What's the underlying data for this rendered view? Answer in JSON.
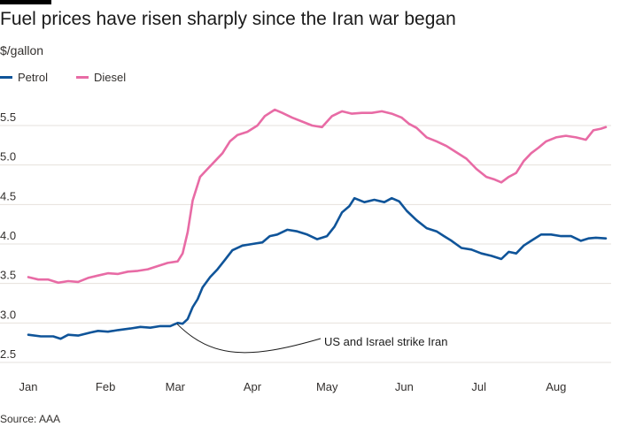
{
  "chart_data": {
    "type": "line",
    "title": "Fuel prices have risen sharply since the Iran war began",
    "ylabel": "$/gallon",
    "source": "Source: AAA",
    "xlim": [
      0,
      232
    ],
    "ylim": [
      2.5,
      5.75
    ],
    "yticks": [
      2.5,
      3.0,
      3.5,
      4.0,
      4.5,
      5.0,
      5.5
    ],
    "months": [
      {
        "label": "Jan",
        "x": 0
      },
      {
        "label": "Feb",
        "x": 31
      },
      {
        "label": "Mar",
        "x": 59
      },
      {
        "label": "Apr",
        "x": 90
      },
      {
        "label": "May",
        "x": 120
      },
      {
        "label": "Jun",
        "x": 151
      },
      {
        "label": "Jul",
        "x": 181
      },
      {
        "label": "Aug",
        "x": 212
      }
    ],
    "grid": true,
    "legend": "top-left",
    "series": [
      {
        "name": "Petrol",
        "color": "#0f5499",
        "points": [
          [
            0,
            2.85
          ],
          [
            5,
            2.83
          ],
          [
            10,
            2.83
          ],
          [
            13,
            2.8
          ],
          [
            16,
            2.85
          ],
          [
            20,
            2.84
          ],
          [
            25,
            2.88
          ],
          [
            28,
            2.9
          ],
          [
            32,
            2.89
          ],
          [
            36,
            2.91
          ],
          [
            41,
            2.93
          ],
          [
            45,
            2.95
          ],
          [
            49,
            2.94
          ],
          [
            53,
            2.96
          ],
          [
            57,
            2.96
          ],
          [
            60,
            3.0
          ],
          [
            62,
            2.99
          ],
          [
            64,
            3.05
          ],
          [
            66,
            3.2
          ],
          [
            68,
            3.3
          ],
          [
            70,
            3.45
          ],
          [
            73,
            3.58
          ],
          [
            76,
            3.68
          ],
          [
            79,
            3.8
          ],
          [
            82,
            3.92
          ],
          [
            86,
            3.98
          ],
          [
            90,
            4.0
          ],
          [
            94,
            4.02
          ],
          [
            97,
            4.1
          ],
          [
            100,
            4.12
          ],
          [
            104,
            4.18
          ],
          [
            108,
            4.16
          ],
          [
            112,
            4.12
          ],
          [
            116,
            4.06
          ],
          [
            120,
            4.1
          ],
          [
            123,
            4.22
          ],
          [
            126,
            4.4
          ],
          [
            129,
            4.48
          ],
          [
            131,
            4.58
          ],
          [
            135,
            4.53
          ],
          [
            139,
            4.56
          ],
          [
            143,
            4.53
          ],
          [
            146,
            4.58
          ],
          [
            149,
            4.54
          ],
          [
            152,
            4.42
          ],
          [
            156,
            4.3
          ],
          [
            160,
            4.2
          ],
          [
            164,
            4.16
          ],
          [
            167,
            4.1
          ],
          [
            170,
            4.04
          ],
          [
            174,
            3.95
          ],
          [
            178,
            3.93
          ],
          [
            182,
            3.88
          ],
          [
            186,
            3.85
          ],
          [
            190,
            3.81
          ],
          [
            193,
            3.9
          ],
          [
            196,
            3.88
          ],
          [
            199,
            3.98
          ],
          [
            202,
            4.04
          ],
          [
            206,
            4.12
          ],
          [
            210,
            4.12
          ],
          [
            214,
            4.1
          ],
          [
            218,
            4.1
          ],
          [
            222,
            4.04
          ],
          [
            225,
            4.07
          ],
          [
            228,
            4.08
          ],
          [
            232,
            4.07
          ]
        ]
      },
      {
        "name": "Diesel",
        "color": "#e86ba5",
        "points": [
          [
            0,
            3.58
          ],
          [
            4,
            3.55
          ],
          [
            8,
            3.55
          ],
          [
            12,
            3.51
          ],
          [
            16,
            3.53
          ],
          [
            20,
            3.52
          ],
          [
            24,
            3.57
          ],
          [
            28,
            3.6
          ],
          [
            32,
            3.63
          ],
          [
            36,
            3.62
          ],
          [
            40,
            3.65
          ],
          [
            44,
            3.66
          ],
          [
            48,
            3.68
          ],
          [
            52,
            3.72
          ],
          [
            56,
            3.76
          ],
          [
            60,
            3.78
          ],
          [
            62,
            3.88
          ],
          [
            64,
            4.15
          ],
          [
            66,
            4.55
          ],
          [
            69,
            4.85
          ],
          [
            72,
            4.95
          ],
          [
            75,
            5.05
          ],
          [
            78,
            5.15
          ],
          [
            81,
            5.3
          ],
          [
            84,
            5.38
          ],
          [
            88,
            5.42
          ],
          [
            92,
            5.5
          ],
          [
            95,
            5.62
          ],
          [
            99,
            5.7
          ],
          [
            102,
            5.66
          ],
          [
            106,
            5.6
          ],
          [
            110,
            5.55
          ],
          [
            114,
            5.5
          ],
          [
            118,
            5.48
          ],
          [
            122,
            5.62
          ],
          [
            126,
            5.68
          ],
          [
            130,
            5.65
          ],
          [
            134,
            5.66
          ],
          [
            138,
            5.66
          ],
          [
            142,
            5.68
          ],
          [
            146,
            5.65
          ],
          [
            150,
            5.6
          ],
          [
            153,
            5.52
          ],
          [
            156,
            5.47
          ],
          [
            160,
            5.35
          ],
          [
            164,
            5.3
          ],
          [
            168,
            5.24
          ],
          [
            172,
            5.16
          ],
          [
            176,
            5.08
          ],
          [
            180,
            4.95
          ],
          [
            184,
            4.85
          ],
          [
            187,
            4.82
          ],
          [
            190,
            4.78
          ],
          [
            193,
            4.85
          ],
          [
            196,
            4.9
          ],
          [
            199,
            5.05
          ],
          [
            202,
            5.15
          ],
          [
            205,
            5.22
          ],
          [
            208,
            5.3
          ],
          [
            212,
            5.35
          ],
          [
            216,
            5.37
          ],
          [
            220,
            5.35
          ],
          [
            224,
            5.32
          ],
          [
            227,
            5.44
          ],
          [
            230,
            5.46
          ],
          [
            232,
            5.48
          ]
        ]
      }
    ],
    "annotation": {
      "text": "US and Israel strike Iran",
      "x": 59,
      "y": 3.0
    }
  }
}
